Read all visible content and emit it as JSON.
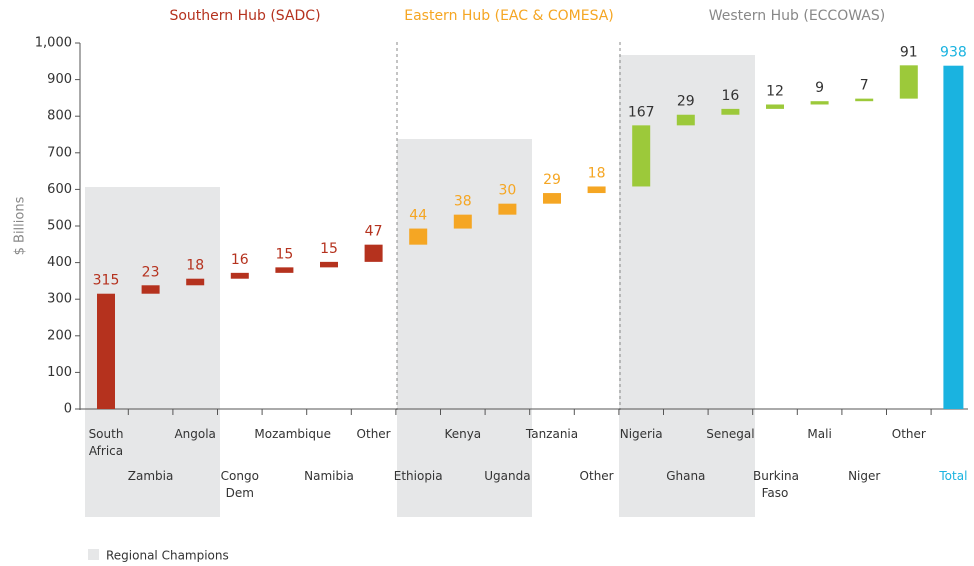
{
  "chart_data": {
    "type": "waterfall",
    "hubs": [
      {
        "name": "Southern Hub (SADC)",
        "color": "#b5321e"
      },
      {
        "name": "Eastern Hub (EAC & COMESA)",
        "color": "#f5a623"
      },
      {
        "name": "Western Hub (ECCOWAS)",
        "color": "#888888"
      }
    ],
    "y_label": "$ Billions",
    "legend": "Regional Champions",
    "categories": [
      "South Africa",
      "Zambia",
      "Angola",
      "Congo Dem",
      "Mozambique",
      "Namibia",
      "Other",
      "Ethiopia",
      "Kenya",
      "Uganda",
      "Tanzania",
      "Other",
      "Nigeria",
      "Ghana",
      "Senegal",
      "Burkina Faso",
      "Mali",
      "Niger",
      "Other",
      "Total"
    ],
    "values": [
      315,
      23,
      18,
      16,
      15,
      15,
      47,
      44,
      38,
      30,
      29,
      18,
      167,
      29,
      16,
      12,
      9,
      7,
      91,
      938
    ],
    "measure": [
      "relative",
      "relative",
      "relative",
      "relative",
      "relative",
      "relative",
      "relative",
      "relative",
      "relative",
      "relative",
      "relative",
      "relative",
      "relative",
      "relative",
      "relative",
      "relative",
      "relative",
      "relative",
      "relative",
      "total"
    ],
    "colors": [
      "#b5321e",
      "#b5321e",
      "#b5321e",
      "#b5321e",
      "#b5321e",
      "#b5321e",
      "#b5321e",
      "#f5a623",
      "#f5a623",
      "#f5a623",
      "#f5a623",
      "#f5a623",
      "#9cc93a",
      "#9cc93a",
      "#9cc93a",
      "#9cc93a",
      "#9cc93a",
      "#9cc93a",
      "#9cc93a",
      "#1ab3e0"
    ],
    "label_colors": [
      "#b5321e",
      "#b5321e",
      "#b5321e",
      "#b5321e",
      "#b5321e",
      "#b5321e",
      "#b5321e",
      "#f5a623",
      "#f5a623",
      "#f5a623",
      "#f5a623",
      "#f5a623",
      "#333333",
      "#333333",
      "#333333",
      "#333333",
      "#333333",
      "#333333",
      "#333333",
      "#1ab3e0"
    ],
    "ylim": [
      0,
      1000
    ],
    "yticks": [
      0,
      100,
      200,
      300,
      400,
      500,
      600,
      700,
      800,
      900,
      {
        "value": 1000,
        "label": "1,000"
      }
    ]
  }
}
